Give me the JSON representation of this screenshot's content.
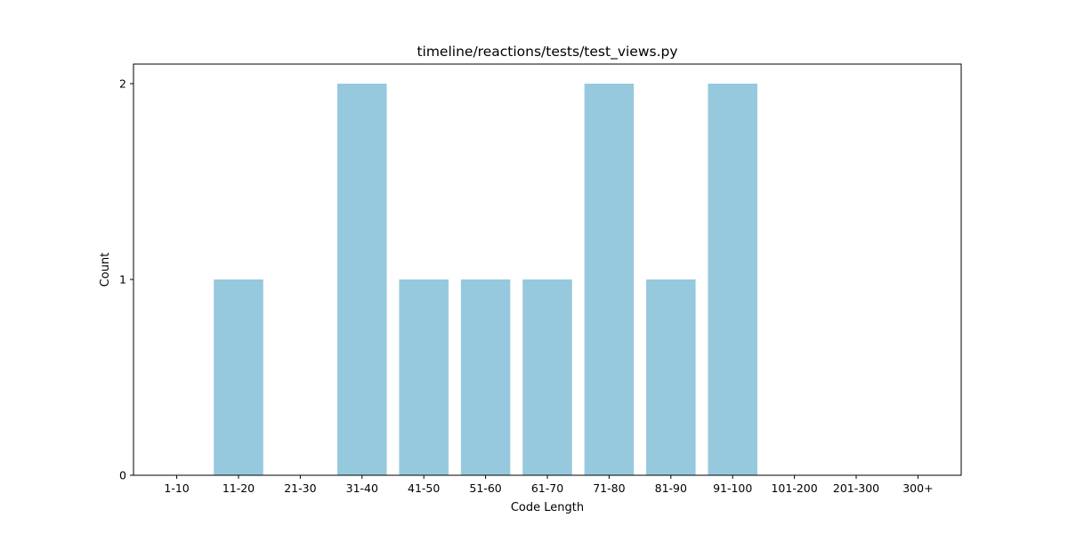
{
  "chart_data": {
    "type": "bar",
    "title": "timeline/reactions/tests/test_views.py",
    "xlabel": "Code Length",
    "ylabel": "Count",
    "categories": [
      "1-10",
      "11-20",
      "21-30",
      "31-40",
      "41-50",
      "51-60",
      "61-70",
      "71-80",
      "81-90",
      "91-100",
      "101-200",
      "201-300",
      "300+"
    ],
    "values": [
      0,
      1,
      0,
      2,
      1,
      1,
      1,
      2,
      1,
      2,
      0,
      0,
      0
    ],
    "ylim": [
      0,
      2.1
    ],
    "yticks": [
      0,
      1,
      2
    ],
    "grid": false,
    "bar_color": "#96c9de"
  }
}
